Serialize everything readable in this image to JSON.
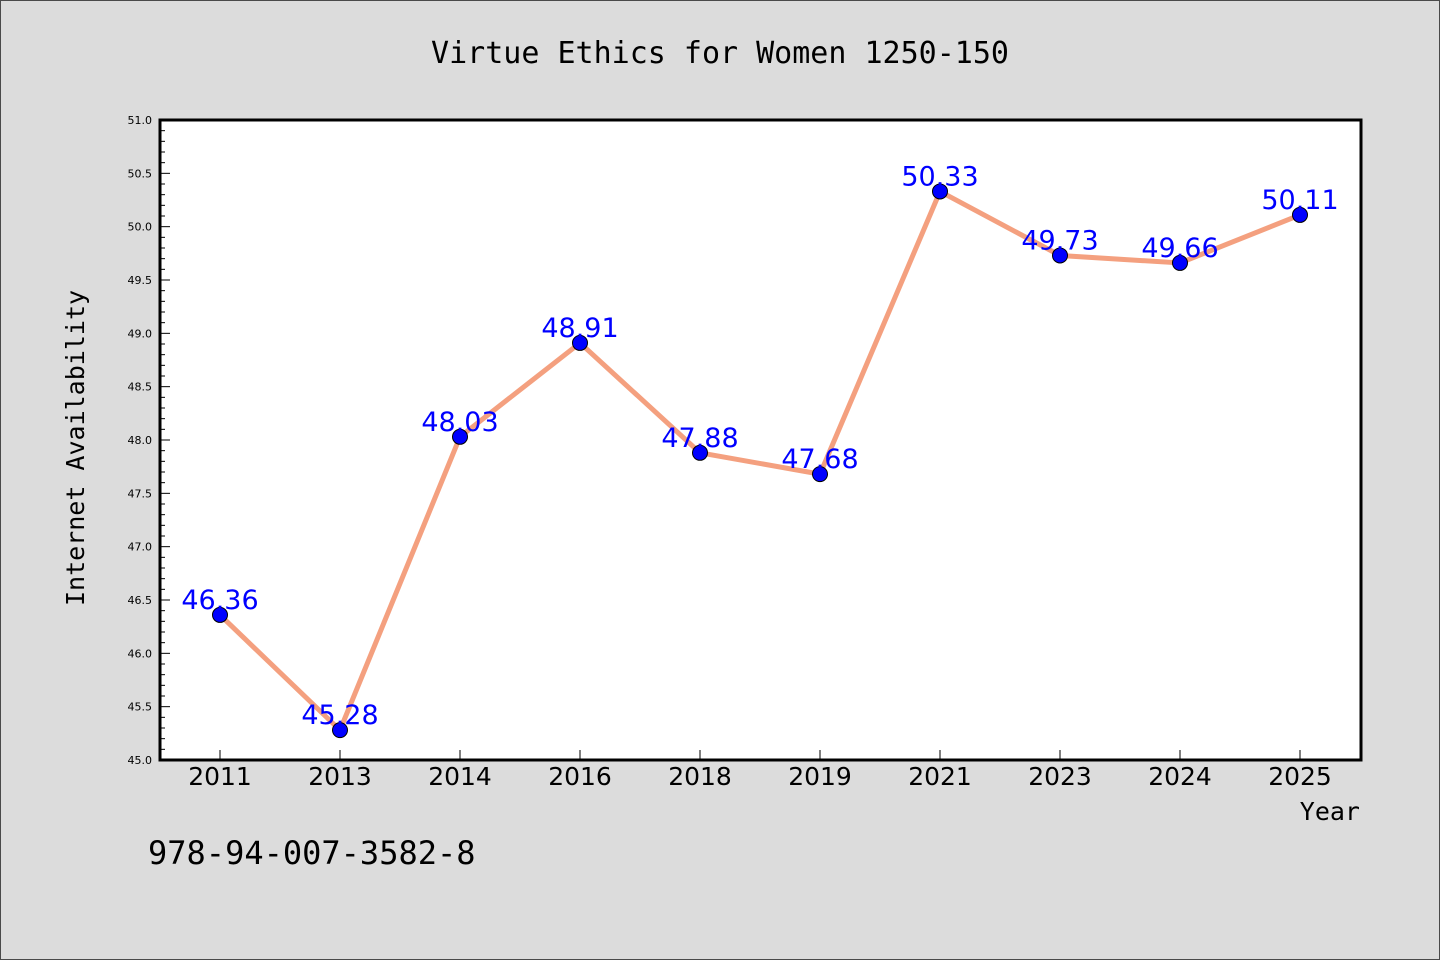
{
  "chart_data": {
    "type": "line",
    "title": "Virtue Ethics for Women 1250-150",
    "xlabel": "Year",
    "ylabel": "Internet Availability",
    "categories": [
      "2011",
      "2013",
      "2014",
      "2016",
      "2018",
      "2019",
      "2021",
      "2023",
      "2024",
      "2025"
    ],
    "series": [
      {
        "values": [
          46.36,
          45.28,
          48.03,
          48.91,
          47.88,
          47.68,
          50.33,
          49.73,
          49.66,
          50.11
        ],
        "data_labels": [
          "46.36",
          "45.28",
          "48.03",
          "48.91",
          "47.88",
          "47.68",
          "50.33",
          "49.73",
          "49.66",
          "50.11"
        ]
      }
    ],
    "ylim": [
      45.0,
      51.0
    ],
    "y_ticks": [
      "45.0",
      "45.5",
      "46.0",
      "46.5",
      "47.0",
      "47.5",
      "48.0",
      "48.5",
      "49.0",
      "49.5",
      "50.0",
      "50.5",
      "51.0"
    ],
    "grid": false,
    "legend": "none",
    "colors": {
      "line": "#f4a07f",
      "marker": "#0000ff",
      "label": "#0000ff",
      "background": "#dcdcdc",
      "plot_area": "#ffffff"
    }
  },
  "footer_text": "978-94-007-3582-8"
}
